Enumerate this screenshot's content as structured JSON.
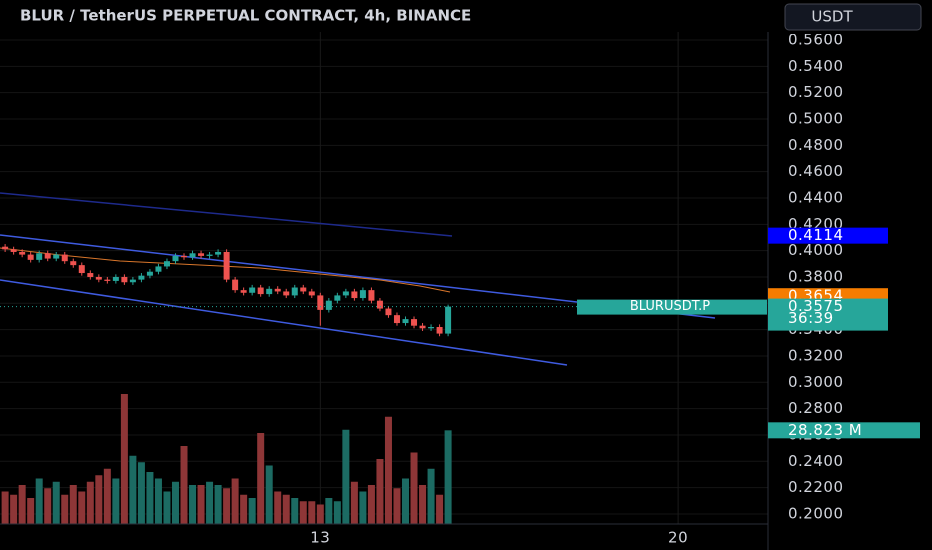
{
  "chart_data": {
    "type": "candlestick",
    "title": "BLUR / TetherUS PERPETUAL CONTRACT, 4h, BINANCE",
    "currency": "USDT",
    "symbol": "BLURUSDT.P",
    "countdown": "36:39",
    "up_color": "#26a69a",
    "down_color": "#ef5350",
    "volume_up_color": "#1c6b63",
    "volume_down_color": "#8e3637",
    "x": [
      6.8333,
      7,
      7.1667,
      7.3333,
      7.5,
      7.6667,
      7.8333,
      8,
      8.1667,
      8.3333,
      8.5,
      8.6667,
      8.8333,
      9,
      9.1667,
      9.3333,
      9.5,
      9.6667,
      9.8333,
      10,
      10.1667,
      10.3333,
      10.5,
      10.6667,
      10.8333,
      11,
      11.1667,
      11.3333,
      11.5,
      11.6667,
      11.8333,
      12,
      12.1667,
      12.3333,
      12.5,
      12.6667,
      12.8333,
      13,
      13.1667,
      13.3333,
      13.5,
      13.6667,
      13.8333,
      14,
      14.1667,
      14.3333,
      14.5,
      14.6667,
      14.8333,
      15,
      15.1667,
      15.3333,
      15.5
    ],
    "open": [
      0.403,
      0.401,
      0.399,
      0.397,
      0.393,
      0.398,
      0.394,
      0.397,
      0.392,
      0.389,
      0.383,
      0.38,
      0.378,
      0.377,
      0.38,
      0.376,
      0.378,
      0.381,
      0.384,
      0.388,
      0.392,
      0.396,
      0.395,
      0.398,
      0.396,
      0.397,
      0.399,
      0.378,
      0.37,
      0.368,
      0.372,
      0.367,
      0.371,
      0.369,
      0.366,
      0.372,
      0.369,
      0.366,
      0.355,
      0.362,
      0.366,
      0.369,
      0.364,
      0.37,
      0.362,
      0.356,
      0.351,
      0.345,
      0.348,
      0.343,
      0.341,
      0.342,
      0.337
    ],
    "high": [
      0.405,
      0.403,
      0.401,
      0.399,
      0.4,
      0.4,
      0.399,
      0.399,
      0.394,
      0.391,
      0.385,
      0.382,
      0.38,
      0.382,
      0.382,
      0.38,
      0.383,
      0.386,
      0.39,
      0.394,
      0.398,
      0.398,
      0.4,
      0.4,
      0.399,
      0.401,
      0.401,
      0.38,
      0.372,
      0.374,
      0.374,
      0.373,
      0.373,
      0.371,
      0.374,
      0.374,
      0.371,
      0.368,
      0.364,
      0.368,
      0.371,
      0.371,
      0.372,
      0.372,
      0.364,
      0.358,
      0.353,
      0.35,
      0.35,
      0.345,
      0.344,
      0.344,
      0.359
    ],
    "low": [
      0.399,
      0.397,
      0.395,
      0.391,
      0.391,
      0.392,
      0.392,
      0.39,
      0.387,
      0.381,
      0.378,
      0.376,
      0.375,
      0.375,
      0.374,
      0.374,
      0.376,
      0.379,
      0.382,
      0.386,
      0.39,
      0.393,
      0.393,
      0.394,
      0.394,
      0.395,
      0.376,
      0.368,
      0.366,
      0.366,
      0.365,
      0.365,
      0.367,
      0.364,
      0.364,
      0.367,
      0.364,
      0.343,
      0.353,
      0.36,
      0.364,
      0.362,
      0.362,
      0.36,
      0.354,
      0.349,
      0.343,
      0.343,
      0.341,
      0.339,
      0.339,
      0.335,
      0.335
    ],
    "close": [
      0.401,
      0.399,
      0.397,
      0.393,
      0.398,
      0.394,
      0.397,
      0.392,
      0.389,
      0.383,
      0.38,
      0.378,
      0.377,
      0.38,
      0.376,
      0.378,
      0.381,
      0.384,
      0.388,
      0.392,
      0.396,
      0.395,
      0.398,
      0.396,
      0.397,
      0.399,
      0.378,
      0.37,
      0.368,
      0.372,
      0.367,
      0.371,
      0.369,
      0.366,
      0.372,
      0.369,
      0.366,
      0.355,
      0.362,
      0.366,
      0.369,
      0.364,
      0.37,
      0.362,
      0.356,
      0.351,
      0.345,
      0.348,
      0.343,
      0.341,
      0.342,
      0.337,
      0.3575
    ],
    "volume": [
      10,
      9,
      12,
      8,
      14,
      11,
      13,
      9,
      12,
      10,
      13,
      15,
      17,
      14,
      40,
      21,
      19,
      16,
      14,
      10,
      13,
      24,
      12,
      12,
      13,
      12,
      11,
      14,
      9,
      8,
      28,
      18,
      10,
      9,
      8,
      7,
      7,
      6,
      8,
      7,
      29,
      13,
      10,
      12,
      20,
      33,
      11,
      14,
      22,
      12,
      17,
      9,
      28.823
    ],
    "volume_label": {
      "value": 28.823,
      "label": "28.823 M"
    },
    "price_tags": [
      {
        "value": 0.4114,
        "label": "0.4114",
        "color": "#0000ff"
      },
      {
        "value": 0.3654,
        "label": "0.3654",
        "color": "#f57c00"
      },
      {
        "value": 0.3575,
        "label": "0.3575",
        "color": "#26a69a"
      }
    ],
    "xlim": [
      6.7333,
      21.7
    ],
    "xticks": [
      13,
      20
    ],
    "ylim": [
      0.1878,
      0.5904
    ],
    "yticks": [
      {
        "value": 0.2,
        "label": "0.2000"
      },
      {
        "value": 0.22,
        "label": "0.2200"
      },
      {
        "value": 0.24,
        "label": "0.2400"
      },
      {
        "value": 0.26,
        "label": "0.2600"
      },
      {
        "value": 0.28,
        "label": "0.2800"
      },
      {
        "value": 0.3,
        "label": "0.3000"
      },
      {
        "value": 0.32,
        "label": "0.3200"
      },
      {
        "value": 0.34,
        "label": "0.3400"
      },
      {
        "value": 0.36,
        "label": "0.3600"
      },
      {
        "value": 0.38,
        "label": "0.3800"
      },
      {
        "value": 0.4,
        "label": "0.4000"
      },
      {
        "value": 0.42,
        "label": "0.4200"
      },
      {
        "value": 0.44,
        "label": "0.4400"
      },
      {
        "value": 0.46,
        "label": "0.4600"
      },
      {
        "value": 0.48,
        "label": "0.4800"
      },
      {
        "value": 0.5,
        "label": "0.5000"
      },
      {
        "value": 0.52,
        "label": "0.5200"
      },
      {
        "value": 0.54,
        "label": "0.5400"
      },
      {
        "value": 0.56,
        "label": "0.5600"
      }
    ],
    "grid": true
  }
}
